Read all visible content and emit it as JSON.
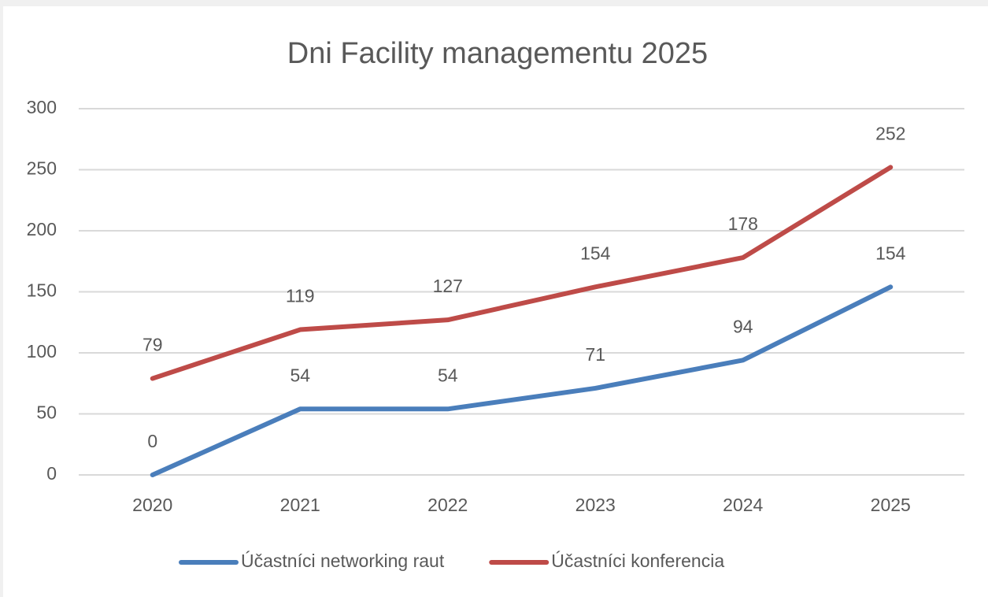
{
  "chart_data": {
    "type": "line",
    "title": "Dni Facility managementu 2025",
    "categories": [
      "2020",
      "2021",
      "2022",
      "2023",
      "2024",
      "2025"
    ],
    "series": [
      {
        "name": "Účastníci networking raut",
        "color": "#4a7ebb",
        "values": [
          0,
          54,
          54,
          71,
          94,
          154
        ]
      },
      {
        "name": "Účastníci konferencia",
        "color": "#be4b48",
        "values": [
          79,
          119,
          127,
          154,
          178,
          252
        ]
      }
    ],
    "ylim": [
      0,
      300
    ],
    "yticks": [
      0,
      50,
      100,
      150,
      200,
      250,
      300
    ],
    "grid": true,
    "legend": "bottom"
  }
}
